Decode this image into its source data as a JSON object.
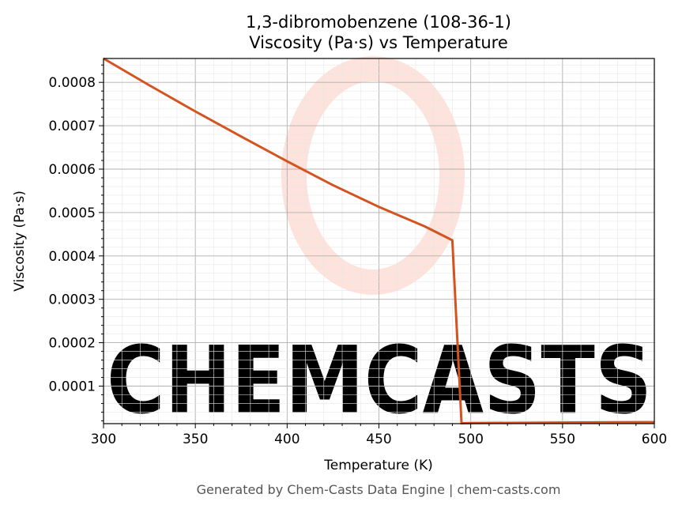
{
  "chart_data": {
    "type": "line",
    "title_line1": "1,3-dibromobenzene (108-36-1)",
    "title_line2": "Viscosity (Pa·s) vs Temperature",
    "xlabel": "Temperature (K)",
    "ylabel": "Viscosity (Pa·s)",
    "xlim": [
      300,
      600
    ],
    "ylim": [
      1.35e-05,
      0.000855
    ],
    "x_ticks": [
      300,
      350,
      400,
      450,
      500,
      550,
      600
    ],
    "y_ticks": [
      0.0001,
      0.0002,
      0.0003,
      0.0004,
      0.0005,
      0.0006,
      0.0007,
      0.0008
    ],
    "y_tick_labels": [
      "0.0001",
      "0.0002",
      "0.0003",
      "0.0004",
      "0.0005",
      "0.0006",
      "0.0007",
      "0.0008"
    ],
    "grid": true,
    "series": [
      {
        "color": "#d4541f",
        "x": [
          300,
          325,
          350,
          375,
          400,
          425,
          450,
          475,
          490,
          495,
          500,
          550,
          600
        ],
        "y": [
          0.000855,
          0.000793,
          0.000733,
          0.000675,
          0.000618,
          0.000563,
          0.000513,
          0.000468,
          0.000436,
          1.45e-05,
          1.48e-05,
          1.6e-05,
          1.7e-05
        ]
      }
    ]
  },
  "watermark": {
    "text": "CHEMCASTS",
    "color": "#fde3dc"
  },
  "footer": "Generated by Chem-Casts Data Engine | chem-casts.com"
}
